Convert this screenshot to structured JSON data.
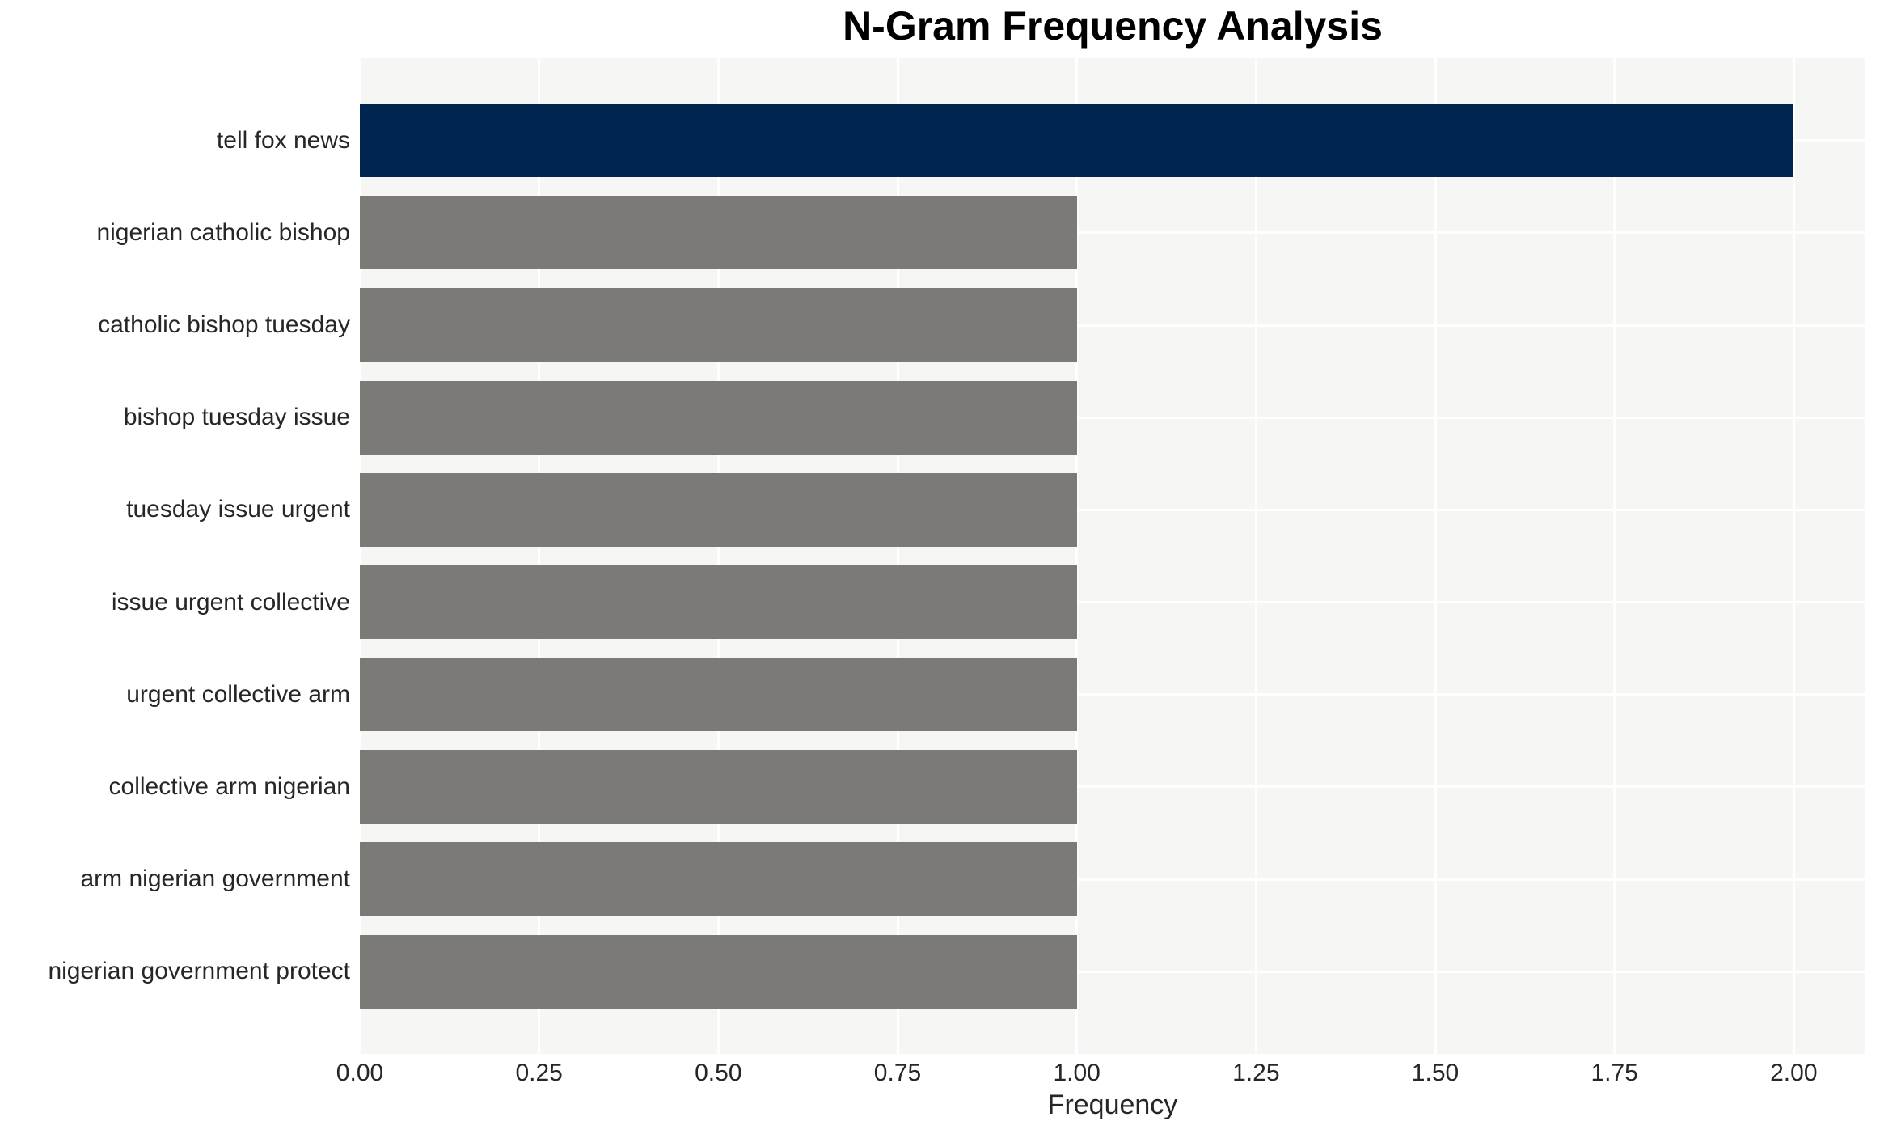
{
  "chart_data": {
    "type": "bar",
    "orientation": "horizontal",
    "title": "N-Gram Frequency Analysis",
    "xlabel": "Frequency",
    "ylabel": "",
    "categories": [
      "tell fox news",
      "nigerian catholic bishop",
      "catholic bishop tuesday",
      "bishop tuesday issue",
      "tuesday issue urgent",
      "issue urgent collective",
      "urgent collective arm",
      "collective arm nigerian",
      "arm nigerian government",
      "nigerian government protect"
    ],
    "values": [
      2,
      1,
      1,
      1,
      1,
      1,
      1,
      1,
      1,
      1
    ],
    "bar_colors": [
      "#00254e",
      "#7b7a76",
      "#7b7a76",
      "#7b7a76",
      "#7b7a76",
      "#7b7a76",
      "#7b7a76",
      "#7b7a76",
      "#7b7a76",
      "#7b7a76"
    ],
    "xlim": [
      0,
      2.1
    ],
    "xtick_values": [
      0,
      0.25,
      0.5,
      0.75,
      1.0,
      1.25,
      1.5,
      1.75,
      2.0
    ],
    "xtick_labels": [
      "0.00",
      "0.25",
      "0.50",
      "0.75",
      "1.00",
      "1.25",
      "1.50",
      "1.75",
      "2.00"
    ],
    "grid": true,
    "legend": null,
    "colors": {
      "highlight_bar": "#00254e",
      "default_bar": "#7b7a76",
      "plot_background": "#f6f6f5",
      "gridline": "#ffffff",
      "tick_text": "#262626",
      "title_text": "#000000"
    }
  }
}
